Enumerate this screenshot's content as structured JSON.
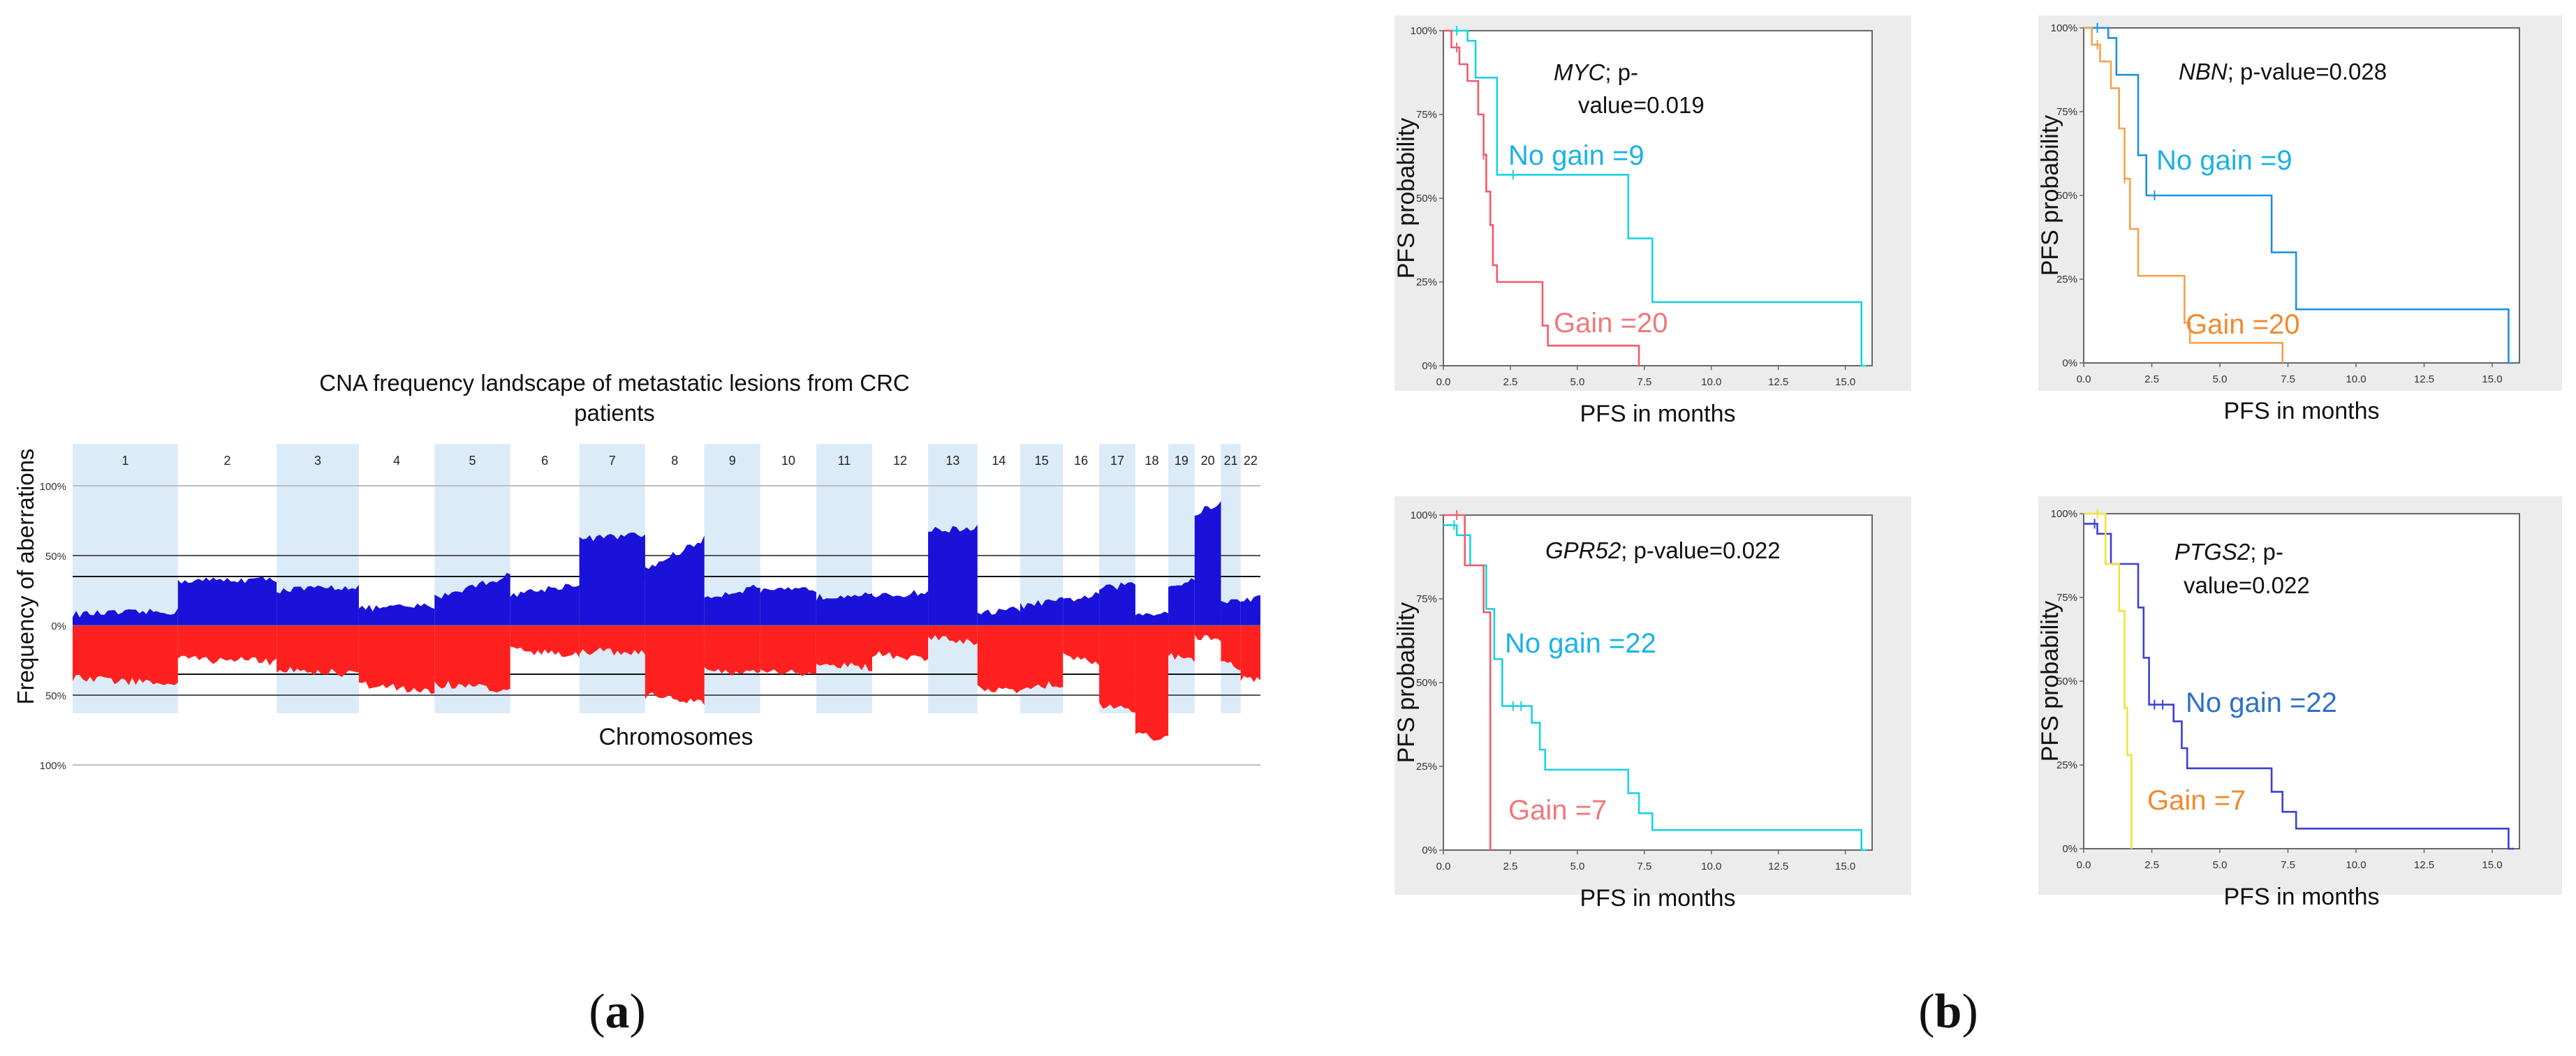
{
  "panel_labels": {
    "a": "a",
    "b": "b"
  },
  "chart_data": [
    {
      "type": "area",
      "id": "cna",
      "title_line1": "CNA frequency landscape of metastatic lesions from CRC",
      "title_line2": "patients",
      "xlabel": "Chromosomes",
      "ylabel": "Frequency of aberrations",
      "y_tick_labels": [
        "100%",
        "50%",
        "0%",
        "50%",
        "100%"
      ],
      "ylim": [
        -100,
        100
      ],
      "colors": {
        "gain": "#1a12d8",
        "loss": "#ff2020",
        "band": "#dcebf8"
      },
      "chromosomes": [
        {
          "label": "1",
          "len": 3.2,
          "band": true,
          "gain": [
            8,
            10
          ],
          "loss": [
            38,
            42
          ]
        },
        {
          "label": "2",
          "len": 3.0,
          "band": false,
          "gain": [
            32,
            33
          ],
          "loss": [
            24,
            26
          ]
        },
        {
          "label": "3",
          "len": 2.5,
          "band": true,
          "gain": [
            25,
            28
          ],
          "loss": [
            32,
            35
          ]
        },
        {
          "label": "4",
          "len": 2.3,
          "band": false,
          "gain": [
            12,
            14
          ],
          "loss": [
            42,
            48
          ]
        },
        {
          "label": "5",
          "len": 2.3,
          "band": true,
          "gain": [
            20,
            36
          ],
          "loss": [
            42,
            46
          ]
        },
        {
          "label": "6",
          "len": 2.1,
          "band": false,
          "gain": [
            22,
            30
          ],
          "loss": [
            18,
            22
          ]
        },
        {
          "label": "7",
          "len": 2.0,
          "band": true,
          "gain": [
            62,
            65
          ],
          "loss": [
            18,
            20
          ]
        },
        {
          "label": "8",
          "len": 1.8,
          "band": false,
          "gain": [
            40,
            62
          ],
          "loss": [
            50,
            55
          ]
        },
        {
          "label": "9",
          "len": 1.7,
          "band": true,
          "gain": [
            20,
            28
          ],
          "loss": [
            32,
            35
          ]
        },
        {
          "label": "10",
          "len": 1.7,
          "band": false,
          "gain": [
            24,
            26
          ],
          "loss": [
            32,
            36
          ]
        },
        {
          "label": "11",
          "len": 1.7,
          "band": true,
          "gain": [
            20,
            24
          ],
          "loss": [
            28,
            30
          ]
        },
        {
          "label": "12",
          "len": 1.7,
          "band": false,
          "gain": [
            20,
            24
          ],
          "loss": [
            20,
            24
          ]
        },
        {
          "label": "13",
          "len": 1.5,
          "band": true,
          "gain": [
            68,
            70
          ],
          "loss": [
            8,
            12
          ]
        },
        {
          "label": "14",
          "len": 1.3,
          "band": false,
          "gain": [
            8,
            12
          ],
          "loss": [
            44,
            48
          ]
        },
        {
          "label": "15",
          "len": 1.3,
          "band": true,
          "gain": [
            14,
            18
          ],
          "loss": [
            44,
            42
          ]
        },
        {
          "label": "16",
          "len": 1.1,
          "band": false,
          "gain": [
            18,
            22
          ],
          "loss": [
            22,
            26
          ]
        },
        {
          "label": "17",
          "len": 1.1,
          "band": true,
          "gain": [
            26,
            30
          ],
          "loss": [
            58,
            60
          ]
        },
        {
          "label": "18",
          "len": 1.0,
          "band": false,
          "gain": [
            8,
            10
          ],
          "loss": [
            78,
            82
          ]
        },
        {
          "label": "19",
          "len": 0.8,
          "band": true,
          "gain": [
            28,
            32
          ],
          "loss": [
            22,
            26
          ]
        },
        {
          "label": "20",
          "len": 0.8,
          "band": false,
          "gain": [
            80,
            88
          ],
          "loss": [
            8,
            10
          ]
        },
        {
          "label": "21",
          "len": 0.6,
          "band": true,
          "gain": [
            16,
            18
          ],
          "loss": [
            28,
            30
          ]
        },
        {
          "label": "22",
          "len": 0.6,
          "band": false,
          "gain": [
            18,
            20
          ],
          "loss": [
            38,
            40
          ]
        }
      ]
    },
    {
      "type": "line",
      "id": "km-myc",
      "gene": "MYC",
      "caption_rest": "; p-value=0.019",
      "p_label_lines": [
        "MYC; p-",
        "value=0.019"
      ],
      "xlabel": "PFS in months",
      "ylabel": "PFS probability",
      "xlim": [
        0,
        16
      ],
      "ylim": [
        0,
        1
      ],
      "x_tick_labels": [
        "0.0",
        "2.5",
        "5.0",
        "7.5",
        "10.0",
        "12.5",
        "15.0"
      ],
      "y_tick_labels": [
        "0%",
        "25%",
        "50%",
        "75%",
        "100%"
      ],
      "series": [
        {
          "name": "No gain =9",
          "color": "#19d3e0",
          "label_color": "#1ab2e6",
          "steps": [
            [
              0,
              1.0
            ],
            [
              0.9,
              0.97
            ],
            [
              1.2,
              0.86
            ],
            [
              2.0,
              0.57
            ],
            [
              6.9,
              0.38
            ],
            [
              7.8,
              0.19
            ],
            [
              15.6,
              0.0
            ]
          ],
          "end": 15.8,
          "censor": [
            [
              0.5,
              1.0
            ],
            [
              2.6,
              0.57
            ]
          ]
        },
        {
          "name": "Gain =20",
          "color": "#f45a68",
          "label_color": "#f0787c",
          "steps": [
            [
              0,
              1.0
            ],
            [
              0.3,
              0.95
            ],
            [
              0.6,
              0.9
            ],
            [
              0.9,
              0.85
            ],
            [
              1.3,
              0.75
            ],
            [
              1.5,
              0.63
            ],
            [
              1.6,
              0.52
            ],
            [
              1.75,
              0.42
            ],
            [
              1.85,
              0.3
            ],
            [
              2.0,
              0.25
            ],
            [
              3.7,
              0.12
            ],
            [
              3.9,
              0.06
            ],
            [
              7.3,
              0.0
            ]
          ],
          "end": 7.3,
          "censor": [
            [
              0.5,
              0.95
            ],
            [
              1.5,
              0.63
            ]
          ]
        }
      ]
    },
    {
      "type": "line",
      "id": "km-nbn",
      "gene": "NBN",
      "caption_rest": "; p-value=0.028",
      "p_label_lines": [
        "NBN; p-value=0.028"
      ],
      "xlabel": "PFS in months",
      "ylabel": "PFS probability",
      "xlim": [
        0,
        16
      ],
      "ylim": [
        0,
        1
      ],
      "x_tick_labels": [
        "0.0",
        "2.5",
        "5.0",
        "7.5",
        "10.0",
        "12.5",
        "15.0"
      ],
      "y_tick_labels": [
        "0%",
        "25%",
        "50%",
        "75%",
        "100%"
      ],
      "series": [
        {
          "name": "No gain =9",
          "color": "#1f90e0",
          "label_color": "#1ab2e6",
          "steps": [
            [
              0,
              1.0
            ],
            [
              0.9,
              0.97
            ],
            [
              1.2,
              0.86
            ],
            [
              2.0,
              0.62
            ],
            [
              2.3,
              0.5
            ],
            [
              6.9,
              0.33
            ],
            [
              7.8,
              0.16
            ],
            [
              15.6,
              0.0
            ]
          ],
          "end": 15.8,
          "censor": [
            [
              0.5,
              1.0
            ],
            [
              2.6,
              0.5
            ]
          ]
        },
        {
          "name": "Gain =20",
          "color": "#f7a24a",
          "label_color": "#f08a2c",
          "steps": [
            [
              0,
              1.0
            ],
            [
              0.3,
              0.95
            ],
            [
              0.6,
              0.9
            ],
            [
              1.0,
              0.82
            ],
            [
              1.3,
              0.7
            ],
            [
              1.5,
              0.55
            ],
            [
              1.7,
              0.4
            ],
            [
              2.0,
              0.26
            ],
            [
              3.7,
              0.12
            ],
            [
              3.9,
              0.06
            ],
            [
              7.3,
              0.0
            ]
          ],
          "end": 7.3,
          "censor": [
            [
              0.5,
              0.95
            ],
            [
              1.5,
              0.55
            ]
          ]
        }
      ]
    },
    {
      "type": "line",
      "id": "km-gpr52",
      "gene": "GPR52",
      "caption_rest": "; p-value=0.022",
      "p_label_lines": [
        "GPR52; p-value=0.022"
      ],
      "xlabel": "PFS in months",
      "ylabel": "PFS probability",
      "xlim": [
        0,
        16
      ],
      "ylim": [
        0,
        1
      ],
      "x_tick_labels": [
        "0.0",
        "2.5",
        "5.0",
        "7.5",
        "10.0",
        "12.5",
        "15.0"
      ],
      "y_tick_labels": [
        "0%",
        "25%",
        "50%",
        "75%",
        "100%"
      ],
      "series": [
        {
          "name": "No gain =22",
          "color": "#19d3e0",
          "label_color": "#1ab2e6",
          "steps": [
            [
              0,
              0.97
            ],
            [
              0.5,
              0.94
            ],
            [
              1.0,
              0.85
            ],
            [
              1.6,
              0.72
            ],
            [
              1.9,
              0.57
            ],
            [
              2.2,
              0.43
            ],
            [
              3.3,
              0.38
            ],
            [
              3.6,
              0.3
            ],
            [
              3.8,
              0.24
            ],
            [
              6.9,
              0.17
            ],
            [
              7.3,
              0.11
            ],
            [
              7.8,
              0.06
            ],
            [
              15.6,
              0.0
            ]
          ],
          "end": 15.8,
          "censor": [
            [
              0.4,
              0.97
            ],
            [
              2.6,
              0.43
            ],
            [
              2.9,
              0.43
            ]
          ]
        },
        {
          "name": "Gain =7",
          "color": "#f45a68",
          "label_color": "#f0787c",
          "steps": [
            [
              0,
              1.0
            ],
            [
              0.8,
              0.85
            ],
            [
              1.5,
              0.71
            ],
            [
              1.75,
              0.0
            ]
          ],
          "end": 1.75,
          "censor": [
            [
              0.5,
              1.0
            ]
          ]
        }
      ]
    },
    {
      "type": "line",
      "id": "km-ptgs2",
      "gene": "PTGS2",
      "caption_rest": "; p-value=0.022",
      "p_label_lines": [
        "PTGS2; p-",
        "value=0.022"
      ],
      "xlabel": "PFS in months",
      "ylabel": "PFS probability",
      "xlim": [
        0,
        16
      ],
      "ylim": [
        0,
        1
      ],
      "x_tick_labels": [
        "0.0",
        "2.5",
        "5.0",
        "7.5",
        "10.0",
        "12.5",
        "15.0"
      ],
      "y_tick_labels": [
        "0%",
        "25%",
        "50%",
        "75%",
        "100%"
      ],
      "series": [
        {
          "name": "No gain =22",
          "color": "#3a3fd6",
          "label_color": "#2d70c8",
          "steps": [
            [
              0,
              0.97
            ],
            [
              0.5,
              0.94
            ],
            [
              1.0,
              0.85
            ],
            [
              2.0,
              0.72
            ],
            [
              2.2,
              0.57
            ],
            [
              2.4,
              0.43
            ],
            [
              3.3,
              0.38
            ],
            [
              3.6,
              0.3
            ],
            [
              3.8,
              0.24
            ],
            [
              6.9,
              0.17
            ],
            [
              7.3,
              0.11
            ],
            [
              7.8,
              0.06
            ],
            [
              15.6,
              0.0
            ]
          ],
          "end": 15.8,
          "censor": [
            [
              0.4,
              0.97
            ],
            [
              0.8,
              0.97
            ],
            [
              2.6,
              0.43
            ],
            [
              2.9,
              0.43
            ]
          ]
        },
        {
          "name": "Gain =7",
          "color": "#f3e03a",
          "label_color": "#f08a2c",
          "steps": [
            [
              0,
              1.0
            ],
            [
              0.8,
              0.85
            ],
            [
              1.3,
              0.71
            ],
            [
              1.5,
              0.42
            ],
            [
              1.6,
              0.28
            ],
            [
              1.75,
              0.0
            ]
          ],
          "end": 1.75,
          "censor": [
            [
              0.5,
              1.0
            ]
          ]
        }
      ]
    }
  ]
}
